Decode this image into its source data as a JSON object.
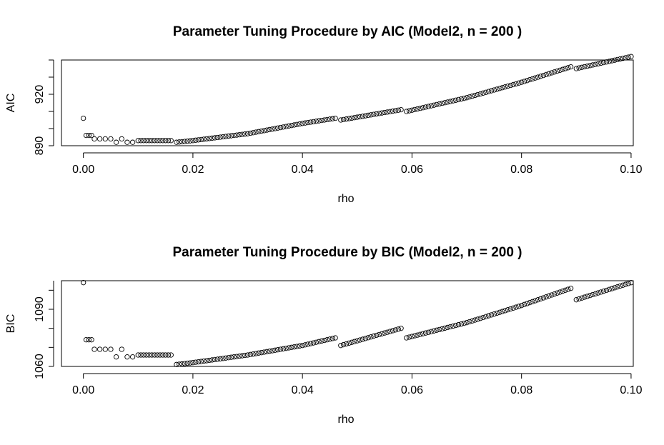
{
  "chart_data": [
    {
      "type": "scatter",
      "title": "Parameter Tuning Procedure by AIC (Model2, n =  200 )",
      "xlabel": "rho",
      "ylabel": "AIC",
      "xlim": [
        -0.004,
        0.1004
      ],
      "ylim": [
        890,
        940
      ],
      "xticks": [
        0.0,
        0.02,
        0.04,
        0.06,
        0.08,
        0.1
      ],
      "xtick_labels": [
        "0.00",
        "0.02",
        "0.04",
        "0.06",
        "0.08",
        "0.10"
      ],
      "yticks": [
        890,
        920
      ],
      "ytick_labels": [
        "890",
        "920"
      ],
      "grid": false,
      "marker": "open-circle",
      "series": [
        {
          "x": [
            0.0,
            0.0005,
            0.001,
            0.0015,
            0.002,
            0.003,
            0.004,
            0.005,
            0.006,
            0.007,
            0.008,
            0.009,
            0.01,
            0.012,
            0.014,
            0.016,
            0.017,
            0.02,
            0.03,
            0.04,
            0.046,
            0.047,
            0.058,
            0.059,
            0.07,
            0.08,
            0.089,
            0.09,
            0.1
          ],
          "y": [
            906,
            896,
            896,
            896,
            894,
            894,
            894,
            894,
            892,
            894,
            892,
            892,
            893,
            893,
            893,
            893,
            892,
            893,
            897,
            903,
            906,
            905,
            911,
            910,
            918,
            927,
            936,
            935,
            942
          ]
        }
      ]
    },
    {
      "type": "scatter",
      "title": "Parameter Tuning Procedure by BIC (Model2, n =  200 )",
      "xlabel": "rho",
      "ylabel": "BIC",
      "xlim": [
        -0.004,
        0.1004
      ],
      "ylim": [
        1060,
        1105
      ],
      "xticks": [
        0.0,
        0.02,
        0.04,
        0.06,
        0.08,
        0.1
      ],
      "xtick_labels": [
        "0.00",
        "0.02",
        "0.04",
        "0.06",
        "0.08",
        "0.10"
      ],
      "yticks": [
        1060,
        1090
      ],
      "ytick_labels": [
        "1060",
        "1090"
      ],
      "grid": false,
      "marker": "open-circle",
      "series": [
        {
          "x": [
            0.0,
            0.0005,
            0.001,
            0.0015,
            0.002,
            0.003,
            0.004,
            0.005,
            0.006,
            0.007,
            0.008,
            0.009,
            0.01,
            0.012,
            0.014,
            0.016,
            0.017,
            0.02,
            0.03,
            0.04,
            0.046,
            0.047,
            0.058,
            0.059,
            0.07,
            0.08,
            0.089,
            0.09,
            0.1
          ],
          "y": [
            1104,
            1074,
            1074,
            1074,
            1069,
            1069,
            1069,
            1069,
            1065,
            1069,
            1065,
            1065,
            1066,
            1066,
            1066,
            1066,
            1061,
            1062,
            1066,
            1071,
            1075,
            1071,
            1080,
            1075,
            1083,
            1092,
            1101,
            1095,
            1104
          ]
        }
      ]
    }
  ]
}
